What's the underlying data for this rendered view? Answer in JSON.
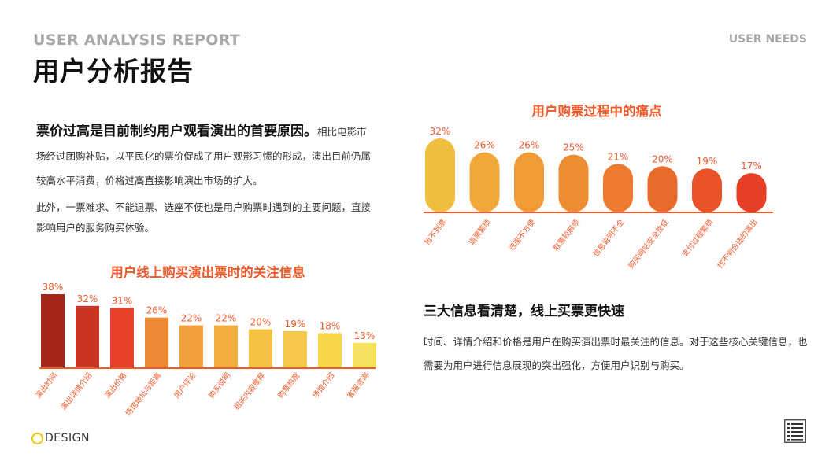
{
  "header": {
    "en_title": "USER ANALYSIS REPORT",
    "cn_title": "用户分析报告",
    "corner_label": "USER NEEDS"
  },
  "intro": {
    "lead_strong": "票价过高是目前制约用户观看演出的首要原因。",
    "lead_rest": "相比电影市场经过团购补贴，以平民化的票价促成了用户观影习惯的形成，演出目前仍属较高水平消费，价格过高直接影响演出市场的扩大。",
    "para2": "此外，一票难求、不能退票、选座不便也是用户购票时遇到的主要问题，直接影响用户的服务购买体验。"
  },
  "section": {
    "title": "三大信息看清楚，线上买票更快速",
    "body": "时间、详情介绍和价格是用户在购买演出票时最关注的信息。对于这些核心关键信息，也需要为用户进行信息展现的突出强化，方便用户识别与购买。"
  },
  "logo": {
    "text": "DESIGN",
    "ring_color": "#f2c500"
  },
  "doc_icon": "list-document-icon",
  "colors": {
    "accent": "#ef5a2a",
    "axis": "#ef5a2a"
  },
  "chart_data": [
    {
      "type": "bar",
      "title": "用户线上购买演出票时的关注信息",
      "categories": [
        "演出时间",
        "演出详情介绍",
        "演出价格",
        "场馆地址与距离",
        "用户评论",
        "购买说明",
        "相关内容推荐",
        "购票热度",
        "场馆介绍",
        "客服咨询"
      ],
      "values": [
        38,
        32,
        31,
        26,
        22,
        22,
        20,
        19,
        18,
        13
      ],
      "labels": [
        "38%",
        "32%",
        "31%",
        "26%",
        "22%",
        "22%",
        "20%",
        "19%",
        "18%",
        "13%"
      ],
      "colors": [
        "#a3281a",
        "#cb3322",
        "#e8412a",
        "#ef8a34",
        "#f2a13c",
        "#f2ad3f",
        "#f5c243",
        "#f5c84a",
        "#f7d548",
        "#f8e15e"
      ],
      "ylim": [
        0,
        38
      ]
    },
    {
      "type": "bar",
      "title": "用户购票过程中的痛点",
      "categories": [
        "抢不到票",
        "退票繁琐",
        "选座不方便",
        "取票较麻烦",
        "信息说明不全",
        "购买网站安全性低",
        "支付过程繁琐",
        "找不到合适的演出"
      ],
      "values": [
        32,
        26,
        26,
        25,
        21,
        20,
        19,
        17
      ],
      "labels": [
        "32%",
        "26%",
        "26%",
        "25%",
        "21%",
        "20%",
        "19%",
        "17%"
      ],
      "colors": [
        "#f0be3e",
        "#f0a83a",
        "#ef9b36",
        "#ee8c34",
        "#ec7b30",
        "#ea6a2c",
        "#e85428",
        "#e63f25"
      ],
      "ylim": [
        0,
        32
      ]
    }
  ]
}
